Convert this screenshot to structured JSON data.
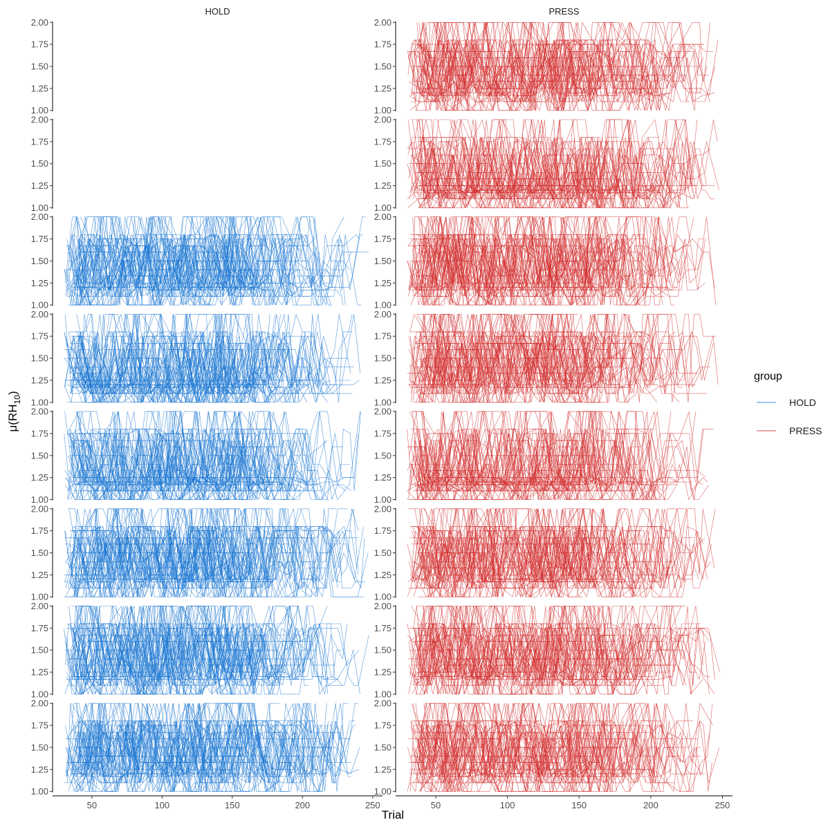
{
  "chart_data": {
    "type": "line",
    "subtype": "faceted small multiples (spaghetti lines, one line per participant)",
    "facet_columns": [
      "HOLD",
      "PRESS"
    ],
    "facet_rows": 8,
    "xlabel": "Trial",
    "ylabel_main": "μ(RH",
    "ylabel_sub": "10",
    "ylabel_close": ")",
    "x_ticks": [
      50,
      100,
      150,
      200,
      250
    ],
    "x_tick_labels": [
      "50",
      "100",
      "150",
      "200",
      "250"
    ],
    "xlim": [
      22,
      257
    ],
    "y_ticks": [
      1.0,
      1.25,
      1.5,
      1.75,
      2.0
    ],
    "y_tick_labels": [
      "1.00",
      "1.25",
      "1.50",
      "1.75",
      "2.00"
    ],
    "ylim": [
      0.99,
      2.01
    ],
    "x_data_range": [
      30,
      250
    ],
    "y_data_range": [
      1.0,
      2.0
    ],
    "legend": {
      "title": "group",
      "position": "right",
      "entries": [
        {
          "label": "HOLD",
          "color": "#1976D2"
        },
        {
          "label": "PRESS",
          "color": "#D32F2F"
        }
      ]
    },
    "panels_with_data": {
      "HOLD": [
        3,
        4,
        5,
        6,
        7,
        8
      ],
      "PRESS": [
        1,
        2,
        3,
        4,
        5,
        6,
        7,
        8
      ]
    },
    "grid": false,
    "line_width": 0.6,
    "line_opacity": 0.75,
    "note": "Each panel contains many overlapping participant trajectories of μ(RH10) across trials; values lie between 1.00 and 2.00. HOLD panels in rows 1-2 are empty."
  }
}
